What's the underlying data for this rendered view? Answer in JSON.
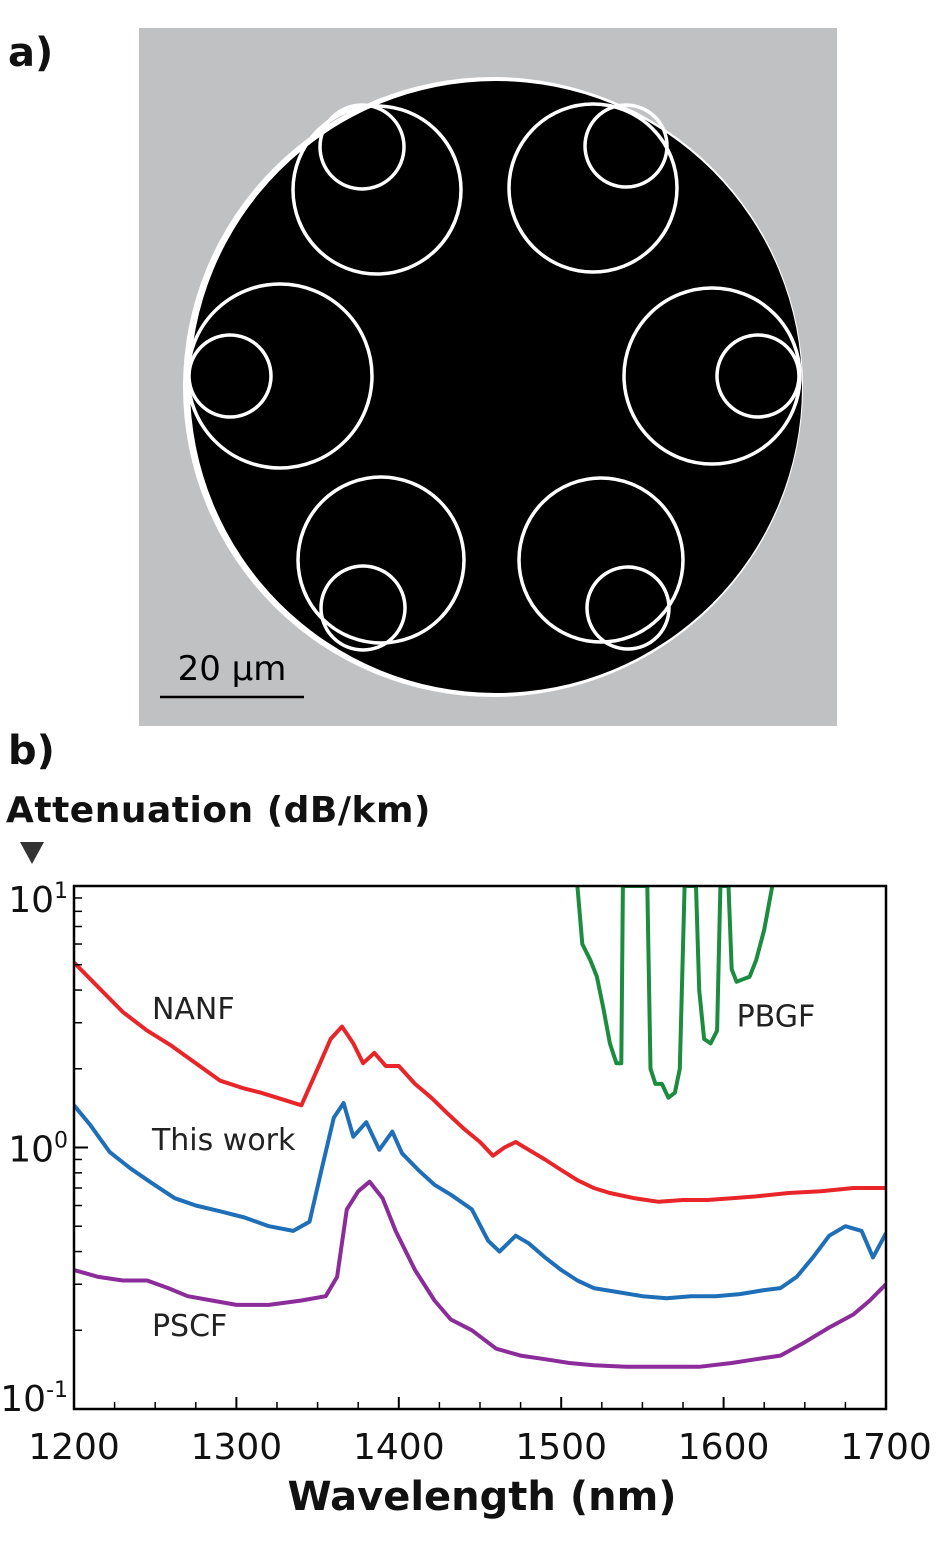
{
  "panel_a": {
    "label": "a)",
    "scale_bar_text": "20 μm",
    "colors": {
      "background": "#c0c1c3",
      "core": "#000000",
      "wall": "#ffffff"
    }
  },
  "panel_b": {
    "label": "b)",
    "y_title": "Attenuation (dB/km)",
    "x_title": "Wavelength (nm)"
  },
  "chart_data": {
    "type": "line",
    "title": "",
    "xlabel": "Wavelength (nm)",
    "ylabel": "Attenuation (dB/km)",
    "xlim": [
      1200,
      1700
    ],
    "ylim": [
      0.1,
      10
    ],
    "y_scale": "log",
    "x_ticks": [
      1200,
      1300,
      1400,
      1500,
      1600,
      1700
    ],
    "x_tick_labels": [
      "1200",
      "1300",
      "1400",
      "1500",
      "1600",
      "1700"
    ],
    "y_ticks": [
      0.1,
      1,
      10
    ],
    "y_tick_labels": [
      {
        "base": "10",
        "exp": "-1"
      },
      {
        "base": "10",
        "exp": "0"
      },
      {
        "base": "10",
        "exp": "1"
      }
    ],
    "grid": false,
    "series": [
      {
        "name": "NANF",
        "color": "#e8262a",
        "label_at": [
          1248,
          3.1
        ],
        "points": [
          [
            1200,
            5.1
          ],
          [
            1215,
            4.1
          ],
          [
            1230,
            3.3
          ],
          [
            1245,
            2.8
          ],
          [
            1260,
            2.45
          ],
          [
            1275,
            2.1
          ],
          [
            1290,
            1.8
          ],
          [
            1305,
            1.68
          ],
          [
            1315,
            1.62
          ],
          [
            1325,
            1.55
          ],
          [
            1340,
            1.45
          ],
          [
            1350,
            2.0
          ],
          [
            1358,
            2.6
          ],
          [
            1365,
            2.9
          ],
          [
            1372,
            2.5
          ],
          [
            1378,
            2.1
          ],
          [
            1385,
            2.3
          ],
          [
            1392,
            2.05
          ],
          [
            1400,
            2.05
          ],
          [
            1410,
            1.75
          ],
          [
            1420,
            1.55
          ],
          [
            1430,
            1.35
          ],
          [
            1440,
            1.18
          ],
          [
            1450,
            1.05
          ],
          [
            1458,
            0.93
          ],
          [
            1465,
            1.0
          ],
          [
            1472,
            1.05
          ],
          [
            1480,
            0.98
          ],
          [
            1490,
            0.9
          ],
          [
            1500,
            0.82
          ],
          [
            1510,
            0.75
          ],
          [
            1520,
            0.7
          ],
          [
            1530,
            0.67
          ],
          [
            1545,
            0.64
          ],
          [
            1560,
            0.62
          ],
          [
            1575,
            0.63
          ],
          [
            1590,
            0.63
          ],
          [
            1605,
            0.64
          ],
          [
            1620,
            0.65
          ],
          [
            1640,
            0.67
          ],
          [
            1660,
            0.68
          ],
          [
            1680,
            0.7
          ],
          [
            1690,
            0.7
          ],
          [
            1700,
            0.7
          ]
        ]
      },
      {
        "name": "This work",
        "color": "#1e6fb8",
        "label_at": [
          1248,
          0.98
        ],
        "points": [
          [
            1200,
            1.45
          ],
          [
            1210,
            1.22
          ],
          [
            1222,
            0.96
          ],
          [
            1235,
            0.83
          ],
          [
            1248,
            0.73
          ],
          [
            1262,
            0.64
          ],
          [
            1275,
            0.6
          ],
          [
            1290,
            0.57
          ],
          [
            1305,
            0.54
          ],
          [
            1320,
            0.5
          ],
          [
            1335,
            0.48
          ],
          [
            1345,
            0.52
          ],
          [
            1352,
            0.8
          ],
          [
            1360,
            1.3
          ],
          [
            1366,
            1.48
          ],
          [
            1372,
            1.1
          ],
          [
            1380,
            1.25
          ],
          [
            1388,
            0.98
          ],
          [
            1396,
            1.15
          ],
          [
            1402,
            0.95
          ],
          [
            1412,
            0.82
          ],
          [
            1422,
            0.72
          ],
          [
            1432,
            0.66
          ],
          [
            1445,
            0.58
          ],
          [
            1455,
            0.44
          ],
          [
            1462,
            0.4
          ],
          [
            1472,
            0.46
          ],
          [
            1480,
            0.43
          ],
          [
            1490,
            0.38
          ],
          [
            1500,
            0.34
          ],
          [
            1510,
            0.31
          ],
          [
            1520,
            0.29
          ],
          [
            1535,
            0.28
          ],
          [
            1550,
            0.27
          ],
          [
            1565,
            0.265
          ],
          [
            1580,
            0.27
          ],
          [
            1595,
            0.27
          ],
          [
            1610,
            0.275
          ],
          [
            1625,
            0.285
          ],
          [
            1635,
            0.29
          ],
          [
            1645,
            0.32
          ],
          [
            1655,
            0.38
          ],
          [
            1665,
            0.46
          ],
          [
            1675,
            0.5
          ],
          [
            1685,
            0.48
          ],
          [
            1692,
            0.38
          ],
          [
            1700,
            0.47
          ]
        ]
      },
      {
        "name": "PSCF",
        "color": "#8b2c9a",
        "label_at": [
          1248,
          0.19
        ],
        "points": [
          [
            1200,
            0.34
          ],
          [
            1215,
            0.32
          ],
          [
            1230,
            0.31
          ],
          [
            1245,
            0.31
          ],
          [
            1258,
            0.29
          ],
          [
            1270,
            0.27
          ],
          [
            1285,
            0.26
          ],
          [
            1300,
            0.25
          ],
          [
            1320,
            0.25
          ],
          [
            1340,
            0.26
          ],
          [
            1355,
            0.27
          ],
          [
            1362,
            0.32
          ],
          [
            1368,
            0.58
          ],
          [
            1375,
            0.68
          ],
          [
            1382,
            0.74
          ],
          [
            1390,
            0.64
          ],
          [
            1398,
            0.48
          ],
          [
            1410,
            0.34
          ],
          [
            1422,
            0.26
          ],
          [
            1432,
            0.22
          ],
          [
            1445,
            0.2
          ],
          [
            1460,
            0.17
          ],
          [
            1475,
            0.16
          ],
          [
            1490,
            0.155
          ],
          [
            1505,
            0.15
          ],
          [
            1520,
            0.147
          ],
          [
            1540,
            0.145
          ],
          [
            1560,
            0.145
          ],
          [
            1585,
            0.145
          ],
          [
            1605,
            0.15
          ],
          [
            1620,
            0.155
          ],
          [
            1635,
            0.16
          ],
          [
            1650,
            0.18
          ],
          [
            1665,
            0.205
          ],
          [
            1680,
            0.23
          ],
          [
            1690,
            0.26
          ],
          [
            1700,
            0.3
          ]
        ]
      },
      {
        "name": "PBGF",
        "color": "#1c8c3e",
        "label_at": [
          1608,
          2.9
        ],
        "points": [
          [
            1510,
            10
          ],
          [
            1513,
            6.0
          ],
          [
            1518,
            5.2
          ],
          [
            1522,
            4.5
          ],
          [
            1526,
            3.4
          ],
          [
            1530,
            2.5
          ],
          [
            1534,
            2.1
          ],
          [
            1537,
            2.1
          ],
          [
            1538,
            10
          ],
          [
            1553,
            10
          ],
          [
            1555,
            2.0
          ],
          [
            1558,
            1.75
          ],
          [
            1562,
            1.75
          ],
          [
            1566,
            1.55
          ],
          [
            1570,
            1.62
          ],
          [
            1573,
            2.0
          ],
          [
            1576,
            10
          ],
          [
            1583,
            10
          ],
          [
            1585,
            4.0
          ],
          [
            1588,
            2.6
          ],
          [
            1592,
            2.5
          ],
          [
            1596,
            2.8
          ],
          [
            1598,
            10
          ],
          [
            1603,
            10
          ],
          [
            1605,
            4.8
          ],
          [
            1608,
            4.3
          ],
          [
            1612,
            4.4
          ],
          [
            1616,
            4.5
          ],
          [
            1620,
            5.2
          ],
          [
            1625,
            6.8
          ],
          [
            1630,
            10
          ]
        ]
      }
    ]
  }
}
